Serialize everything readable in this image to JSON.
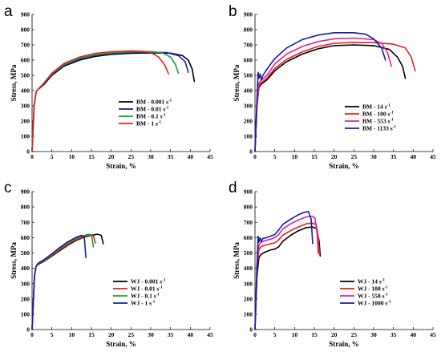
{
  "chart_data": [
    {
      "panel": "a",
      "type": "line",
      "xlabel": "Strain, %",
      "ylabel": "Stress, MPa",
      "xlim": [
        0,
        45
      ],
      "ylim": [
        0,
        900
      ],
      "xticks": [
        "0",
        "5",
        "10",
        "15",
        "20",
        "25",
        "30",
        "35",
        "40",
        "45"
      ],
      "yticks": [
        "0",
        "100",
        "200",
        "300",
        "400",
        "500",
        "600",
        "700",
        "800",
        "900"
      ],
      "legend_position": "bottom-right",
      "series": [
        {
          "name": "BM - 0.001 s",
          "sup": "-1",
          "color": "#000000",
          "x": [
            0,
            0.5,
            1.0,
            1.2,
            3,
            5,
            8,
            12,
            16,
            20,
            25,
            30,
            35,
            38,
            39.5,
            40.5,
            41
          ],
          "y": [
            0,
            300,
            385,
            400,
            440,
            500,
            560,
            600,
            625,
            638,
            645,
            648,
            646,
            630,
            600,
            540,
            460
          ]
        },
        {
          "name": "BM - 0.01 s",
          "sup": "-1",
          "color": "#1a1aa6",
          "x": [
            0,
            0.5,
            1.0,
            1.2,
            3,
            5,
            8,
            12,
            16,
            20,
            25,
            30,
            34,
            37,
            38.7,
            39.5
          ],
          "y": [
            0,
            300,
            385,
            400,
            445,
            505,
            565,
            605,
            630,
            642,
            650,
            652,
            650,
            630,
            590,
            520
          ]
        },
        {
          "name": "BM - 0.1 s",
          "sup": "-1",
          "color": "#1a9a3a",
          "x": [
            0,
            0.5,
            1.0,
            1.2,
            3,
            5,
            8,
            12,
            16,
            20,
            25,
            30,
            33,
            35,
            36.2,
            37
          ],
          "y": [
            0,
            300,
            385,
            400,
            448,
            510,
            570,
            612,
            636,
            648,
            655,
            656,
            648,
            620,
            575,
            515
          ]
        },
        {
          "name": "BM - 1 s",
          "sup": "-1",
          "color": "#e62020",
          "x": [
            0,
            0.5,
            1.0,
            1.2,
            3,
            5,
            8,
            12,
            16,
            20,
            25,
            28,
            30,
            32,
            33.5,
            34.5
          ],
          "y": [
            0,
            300,
            385,
            400,
            450,
            515,
            578,
            620,
            645,
            655,
            660,
            658,
            650,
            620,
            570,
            510
          ]
        }
      ]
    },
    {
      "panel": "b",
      "type": "line",
      "xlabel": "Strain, %",
      "ylabel": "Stress, MPa",
      "xlim": [
        0,
        45
      ],
      "ylim": [
        0,
        900
      ],
      "xticks": [
        "0",
        "5",
        "10",
        "15",
        "20",
        "25",
        "30",
        "35",
        "40",
        "45"
      ],
      "yticks": [
        "0",
        "100",
        "200",
        "300",
        "400",
        "500",
        "600",
        "700",
        "800",
        "900"
      ],
      "legend_position": "bottom-right",
      "series": [
        {
          "name": "BM - 14 s",
          "sup": "-1",
          "color": "#000000",
          "x": [
            0,
            0.5,
            1.0,
            1.5,
            3,
            5,
            8,
            12,
            16,
            20,
            25,
            30,
            34,
            36,
            37.3,
            38
          ],
          "y": [
            0,
            300,
            420,
            440,
            470,
            530,
            590,
            640,
            675,
            695,
            700,
            695,
            670,
            620,
            560,
            480
          ]
        },
        {
          "name": "BM - 100 s",
          "sup": "-1",
          "color": "#e62020",
          "x": [
            0,
            0.5,
            1.0,
            1.5,
            3,
            5,
            8,
            12,
            16,
            20,
            25,
            30,
            35,
            38,
            39.5,
            40.5
          ],
          "y": [
            0,
            300,
            430,
            450,
            480,
            545,
            605,
            655,
            690,
            710,
            717,
            715,
            705,
            680,
            620,
            530
          ]
        },
        {
          "name": "BM - 553 s",
          "sup": "-1",
          "color": "#e6208c",
          "x": [
            0,
            0.5,
            1.0,
            1.5,
            3,
            5,
            8,
            12,
            16,
            20,
            25,
            30,
            32,
            33.5,
            34.5
          ],
          "y": [
            0,
            320,
            450,
            465,
            500,
            575,
            640,
            690,
            722,
            740,
            745,
            735,
            710,
            650,
            560
          ]
        },
        {
          "name": "BM - 1133 s",
          "sup": "-1",
          "color": "#1a1aa6",
          "x": [
            0,
            0.5,
            0.8,
            1.0,
            1.3,
            1.6,
            2.0,
            3,
            5,
            8,
            12,
            16,
            20,
            25,
            28,
            30,
            32,
            33
          ],
          "y": [
            0,
            350,
            520,
            480,
            510,
            470,
            500,
            540,
            610,
            680,
            735,
            765,
            780,
            780,
            770,
            740,
            680,
            600
          ]
        }
      ]
    },
    {
      "panel": "c",
      "type": "line",
      "xlabel": "Strain, %",
      "ylabel": "Stress, MPa",
      "xlim": [
        0,
        45
      ],
      "ylim": [
        0,
        900
      ],
      "xticks": [
        "0",
        "5",
        "10",
        "15",
        "20",
        "25",
        "30",
        "35",
        "40",
        "45"
      ],
      "yticks": [
        "0",
        "100",
        "200",
        "300",
        "400",
        "500",
        "600",
        "700",
        "800",
        "900"
      ],
      "legend_position": "bottom-right",
      "series": [
        {
          "name": "WJ - 0.001 s",
          "sup": "-1",
          "color": "#000000",
          "x": [
            0,
            0.6,
            1.0,
            1.5,
            3,
            5,
            7,
            9,
            11,
            13,
            15,
            16.5,
            17.5,
            18
          ],
          "y": [
            0,
            350,
            410,
            425,
            445,
            480,
            515,
            550,
            580,
            602,
            615,
            622,
            615,
            560
          ]
        },
        {
          "name": "WJ - 0.01 s",
          "sup": "-1",
          "color": "#e62020",
          "x": [
            0,
            0.6,
            1.0,
            1.5,
            3,
            5,
            7,
            9,
            11,
            13,
            14.5,
            15.5,
            16
          ],
          "y": [
            0,
            350,
            410,
            428,
            448,
            485,
            520,
            555,
            585,
            605,
            615,
            610,
            565
          ]
        },
        {
          "name": "WJ - 0.1 s",
          "sup": "-1",
          "color": "#1a9a3a",
          "x": [
            0,
            0.6,
            1.0,
            1.5,
            3,
            5,
            7,
            9,
            11,
            13,
            14.2,
            15,
            15.5
          ],
          "y": [
            0,
            350,
            410,
            430,
            452,
            490,
            528,
            565,
            592,
            612,
            622,
            618,
            540
          ]
        },
        {
          "name": "WJ - 1 s",
          "sup": "-1",
          "color": "#1a1aa6",
          "x": [
            0,
            0.6,
            1.0,
            1.5,
            3,
            5,
            7,
            9,
            11,
            12.5,
            13.2,
            13.6
          ],
          "y": [
            0,
            350,
            410,
            432,
            455,
            495,
            535,
            572,
            600,
            615,
            605,
            470
          ]
        }
      ]
    },
    {
      "panel": "d",
      "type": "line",
      "xlabel": "Strain, %",
      "ylabel": "Stress, MPa",
      "xlim": [
        0,
        45
      ],
      "ylim": [
        0,
        900
      ],
      "xticks": [
        "0",
        "5",
        "10",
        "15",
        "20",
        "25",
        "30",
        "35",
        "40",
        "45"
      ],
      "yticks": [
        "0",
        "100",
        "200",
        "300",
        "400",
        "500",
        "600",
        "700",
        "800",
        "900"
      ],
      "legend_position": "bottom-right",
      "series": [
        {
          "name": "WJ - 14 s",
          "sup": "-1",
          "color": "#000000",
          "x": [
            0,
            0.5,
            1.0,
            1.5,
            2.5,
            4,
            5,
            6,
            7,
            9,
            11,
            13,
            14.5,
            15.5,
            16.2,
            16.5
          ],
          "y": [
            0,
            350,
            470,
            490,
            505,
            520,
            525,
            540,
            575,
            615,
            645,
            665,
            670,
            660,
            580,
            480
          ]
        },
        {
          "name": "WJ - 100 s",
          "sup": "-1",
          "color": "#e62020",
          "x": [
            0,
            0.5,
            1.0,
            1.5,
            2.5,
            4,
            5,
            6,
            7,
            9,
            11,
            13,
            14.5,
            15.5,
            16.0,
            16.3
          ],
          "y": [
            0,
            400,
            520,
            540,
            550,
            560,
            565,
            585,
            615,
            645,
            670,
            690,
            695,
            685,
            600,
            490
          ]
        },
        {
          "name": "WJ - 558 s",
          "sup": "-1",
          "color": "#e6208c",
          "x": [
            0,
            0.5,
            1.0,
            1.5,
            2.5,
            4,
            5,
            6,
            7,
            9,
            11,
            13,
            14.5,
            15.2,
            15.7,
            16.0
          ],
          "y": [
            0,
            420,
            550,
            570,
            580,
            590,
            600,
            620,
            655,
            690,
            715,
            735,
            740,
            725,
            620,
            500
          ]
        },
        {
          "name": "WJ - 1000 s",
          "sup": "-1",
          "color": "#1a1aa6",
          "x": [
            0,
            0.5,
            0.8,
            1.0,
            1.3,
            1.6,
            2.0,
            3,
            4,
            5,
            6,
            7,
            9,
            11,
            12.5,
            13.5,
            14.2,
            14.6
          ],
          "y": [
            0,
            420,
            610,
            570,
            600,
            575,
            595,
            600,
            610,
            620,
            650,
            685,
            720,
            750,
            765,
            770,
            720,
            560
          ]
        }
      ]
    }
  ]
}
